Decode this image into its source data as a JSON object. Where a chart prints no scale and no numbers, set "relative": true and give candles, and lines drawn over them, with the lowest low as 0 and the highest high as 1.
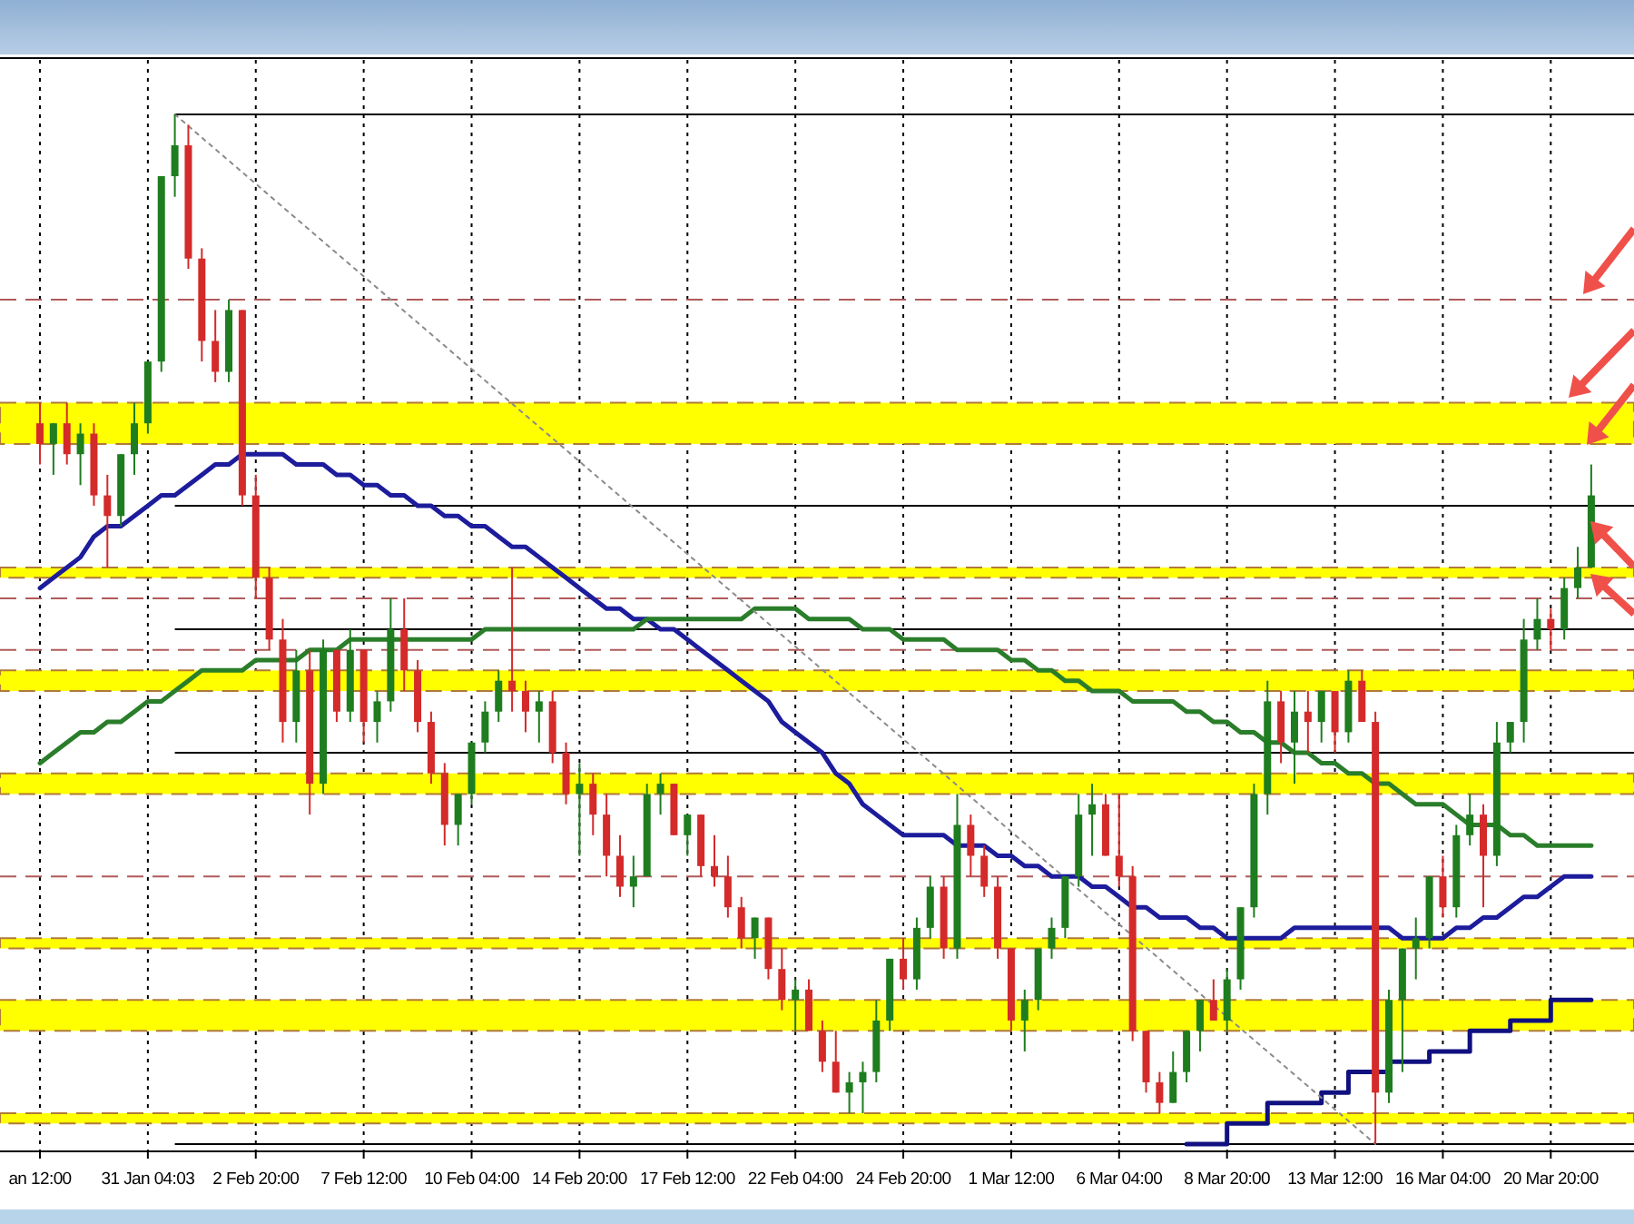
{
  "chart_data": {
    "type": "candlestick",
    "relative": true,
    "tick_labels": "x",
    "grid": "x",
    "categories": [
      "an 12:00",
      null,
      null,
      null,
      null,
      null,
      null,
      null,
      "31 Jan 04:03",
      null,
      null,
      null,
      null,
      null,
      null,
      null,
      "2 Feb 20:00",
      null,
      null,
      null,
      null,
      null,
      null,
      null,
      "7 Feb 12:00",
      null,
      null,
      null,
      null,
      null,
      null,
      null,
      "10 Feb 04:00",
      null,
      null,
      null,
      null,
      null,
      null,
      null,
      "14 Feb 20:00",
      null,
      null,
      null,
      null,
      null,
      null,
      null,
      "17 Feb 12:00",
      null,
      null,
      null,
      null,
      null,
      null,
      null,
      "22 Feb 04:00",
      null,
      null,
      null,
      null,
      null,
      null,
      null,
      "24 Feb 20:00",
      null,
      null,
      null,
      null,
      null,
      null,
      null,
      "1 Mar 12:00",
      null,
      null,
      null,
      null,
      null,
      null,
      null,
      "6 Mar 04:00",
      null,
      null,
      null,
      null,
      null,
      null,
      null,
      "8 Mar 20:00",
      null,
      null,
      null,
      null,
      null,
      null,
      null,
      "13 Mar 12:00",
      null,
      null,
      null,
      null,
      null,
      null,
      null,
      "16 Mar 04:00",
      null,
      null,
      null,
      null,
      null,
      null,
      null,
      "20 Mar 20:00",
      null,
      null,
      null
    ],
    "ohlc": [
      [
        0.7,
        0.72,
        0.66,
        0.68
      ],
      [
        0.68,
        0.7,
        0.65,
        0.7
      ],
      [
        0.7,
        0.72,
        0.66,
        0.67
      ],
      [
        0.67,
        0.7,
        0.64,
        0.69
      ],
      [
        0.69,
        0.7,
        0.62,
        0.63
      ],
      [
        0.63,
        0.65,
        0.56,
        0.61
      ],
      [
        0.61,
        0.67,
        0.6,
        0.67
      ],
      [
        0.67,
        0.72,
        0.65,
        0.7
      ],
      [
        0.7,
        0.76,
        0.69,
        0.76
      ],
      [
        0.76,
        0.94,
        0.75,
        0.94
      ],
      [
        0.94,
        1.0,
        0.92,
        0.97
      ],
      [
        0.97,
        0.99,
        0.85,
        0.86
      ],
      [
        0.86,
        0.87,
        0.76,
        0.78
      ],
      [
        0.78,
        0.81,
        0.74,
        0.75
      ],
      [
        0.75,
        0.82,
        0.74,
        0.81
      ],
      [
        0.81,
        0.81,
        0.62,
        0.63
      ],
      [
        0.63,
        0.65,
        0.53,
        0.55
      ],
      [
        0.55,
        0.56,
        0.48,
        0.49
      ],
      [
        0.49,
        0.51,
        0.39,
        0.41
      ],
      [
        0.41,
        0.48,
        0.39,
        0.46
      ],
      [
        0.46,
        0.48,
        0.32,
        0.35
      ],
      [
        0.35,
        0.49,
        0.34,
        0.48
      ],
      [
        0.48,
        0.48,
        0.41,
        0.42
      ],
      [
        0.42,
        0.5,
        0.41,
        0.48
      ],
      [
        0.48,
        0.48,
        0.39,
        0.41
      ],
      [
        0.41,
        0.44,
        0.39,
        0.43
      ],
      [
        0.43,
        0.53,
        0.42,
        0.5
      ],
      [
        0.5,
        0.53,
        0.44,
        0.46
      ],
      [
        0.46,
        0.47,
        0.4,
        0.41
      ],
      [
        0.41,
        0.42,
        0.35,
        0.36
      ],
      [
        0.36,
        0.37,
        0.29,
        0.31
      ],
      [
        0.31,
        0.34,
        0.29,
        0.34
      ],
      [
        0.34,
        0.39,
        0.33,
        0.39
      ],
      [
        0.39,
        0.43,
        0.38,
        0.42
      ],
      [
        0.42,
        0.46,
        0.41,
        0.45
      ],
      [
        0.45,
        0.56,
        0.42,
        0.44
      ],
      [
        0.44,
        0.45,
        0.4,
        0.42
      ],
      [
        0.42,
        0.44,
        0.39,
        0.43
      ],
      [
        0.43,
        0.44,
        0.37,
        0.38
      ],
      [
        0.38,
        0.39,
        0.33,
        0.34
      ],
      [
        0.34,
        0.37,
        0.28,
        0.35
      ],
      [
        0.35,
        0.36,
        0.3,
        0.32
      ],
      [
        0.32,
        0.34,
        0.26,
        0.28
      ],
      [
        0.28,
        0.3,
        0.24,
        0.25
      ],
      [
        0.25,
        0.28,
        0.23,
        0.26
      ],
      [
        0.26,
        0.35,
        0.26,
        0.34
      ],
      [
        0.34,
        0.36,
        0.32,
        0.35
      ],
      [
        0.35,
        0.35,
        0.3,
        0.3
      ],
      [
        0.3,
        0.32,
        0.28,
        0.32
      ],
      [
        0.32,
        0.32,
        0.26,
        0.27
      ],
      [
        0.27,
        0.3,
        0.25,
        0.26
      ],
      [
        0.26,
        0.28,
        0.22,
        0.23
      ],
      [
        0.23,
        0.24,
        0.19,
        0.2
      ],
      [
        0.2,
        0.22,
        0.18,
        0.22
      ],
      [
        0.22,
        0.22,
        0.16,
        0.17
      ],
      [
        0.17,
        0.19,
        0.13,
        0.14
      ],
      [
        0.14,
        0.16,
        0.11,
        0.15
      ],
      [
        0.15,
        0.16,
        0.11,
        0.11
      ],
      [
        0.11,
        0.12,
        0.07,
        0.08
      ],
      [
        0.08,
        0.11,
        0.05,
        0.05
      ],
      [
        0.05,
        0.07,
        0.03,
        0.06
      ],
      [
        0.06,
        0.08,
        0.03,
        0.07
      ],
      [
        0.07,
        0.14,
        0.06,
        0.12
      ],
      [
        0.12,
        0.18,
        0.11,
        0.18
      ],
      [
        0.18,
        0.2,
        0.15,
        0.16
      ],
      [
        0.16,
        0.22,
        0.15,
        0.21
      ],
      [
        0.21,
        0.26,
        0.2,
        0.25
      ],
      [
        0.25,
        0.26,
        0.18,
        0.19
      ],
      [
        0.19,
        0.34,
        0.18,
        0.31
      ],
      [
        0.31,
        0.32,
        0.26,
        0.28
      ],
      [
        0.28,
        0.29,
        0.24,
        0.25
      ],
      [
        0.25,
        0.26,
        0.18,
        0.19
      ],
      [
        0.19,
        0.19,
        0.11,
        0.12
      ],
      [
        0.12,
        0.15,
        0.09,
        0.14
      ],
      [
        0.14,
        0.19,
        0.13,
        0.19
      ],
      [
        0.19,
        0.22,
        0.18,
        0.21
      ],
      [
        0.21,
        0.26,
        0.2,
        0.26
      ],
      [
        0.26,
        0.34,
        0.25,
        0.32
      ],
      [
        0.32,
        0.35,
        0.28,
        0.33
      ],
      [
        0.33,
        0.34,
        0.28,
        0.28
      ],
      [
        0.28,
        0.34,
        0.25,
        0.26
      ],
      [
        0.26,
        0.27,
        0.1,
        0.11
      ],
      [
        0.11,
        0.11,
        0.05,
        0.06
      ],
      [
        0.06,
        0.07,
        0.03,
        0.04
      ],
      [
        0.04,
        0.09,
        0.04,
        0.07
      ],
      [
        0.07,
        0.11,
        0.06,
        0.11
      ],
      [
        0.11,
        0.14,
        0.09,
        0.14
      ],
      [
        0.14,
        0.16,
        0.12,
        0.12
      ],
      [
        0.12,
        0.17,
        0.11,
        0.16
      ],
      [
        0.16,
        0.23,
        0.15,
        0.23
      ],
      [
        0.23,
        0.35,
        0.22,
        0.34
      ],
      [
        0.34,
        0.45,
        0.32,
        0.43
      ],
      [
        0.43,
        0.44,
        0.37,
        0.39
      ],
      [
        0.39,
        0.44,
        0.35,
        0.42
      ],
      [
        0.42,
        0.44,
        0.38,
        0.41
      ],
      [
        0.41,
        0.44,
        0.39,
        0.44
      ],
      [
        0.44,
        0.44,
        0.38,
        0.4
      ],
      [
        0.4,
        0.46,
        0.39,
        0.45
      ],
      [
        0.45,
        0.46,
        0.41,
        0.41
      ],
      [
        0.41,
        0.42,
        0.0,
        0.05
      ],
      [
        0.05,
        0.15,
        0.04,
        0.14
      ],
      [
        0.14,
        0.19,
        0.07,
        0.19
      ],
      [
        0.19,
        0.22,
        0.16,
        0.2
      ],
      [
        0.2,
        0.26,
        0.19,
        0.26
      ],
      [
        0.26,
        0.28,
        0.22,
        0.23
      ],
      [
        0.23,
        0.31,
        0.22,
        0.3
      ],
      [
        0.3,
        0.34,
        0.29,
        0.32
      ],
      [
        0.32,
        0.33,
        0.23,
        0.28
      ],
      [
        0.28,
        0.41,
        0.27,
        0.39
      ],
      [
        0.39,
        0.41,
        0.38,
        0.41
      ],
      [
        0.41,
        0.51,
        0.39,
        0.49
      ],
      [
        0.49,
        0.53,
        0.48,
        0.51
      ],
      [
        0.51,
        0.52,
        0.48,
        0.5
      ],
      [
        0.5,
        0.55,
        0.49,
        0.54
      ],
      [
        0.54,
        0.58,
        0.53,
        0.56
      ],
      [
        0.56,
        0.66,
        0.56,
        0.63
      ]
    ],
    "series": [
      {
        "type": "line",
        "color": "#1c1c9c",
        "values": [
          0.54,
          0.55,
          0.56,
          0.57,
          0.59,
          0.6,
          0.6,
          0.61,
          0.62,
          0.63,
          0.63,
          0.64,
          0.65,
          0.66,
          0.66,
          0.67,
          0.67,
          0.67,
          0.67,
          0.66,
          0.66,
          0.66,
          0.65,
          0.65,
          0.64,
          0.64,
          0.63,
          0.63,
          0.62,
          0.62,
          0.61,
          0.61,
          0.6,
          0.6,
          0.59,
          0.58,
          0.58,
          0.57,
          0.56,
          0.55,
          0.54,
          0.53,
          0.52,
          0.52,
          0.51,
          0.51,
          0.5,
          0.5,
          0.49,
          0.48,
          0.47,
          0.46,
          0.45,
          0.44,
          0.43,
          0.41,
          0.4,
          0.39,
          0.38,
          0.36,
          0.35,
          0.33,
          0.32,
          0.31,
          0.3,
          0.3,
          0.3,
          0.3,
          0.29,
          0.29,
          0.29,
          0.28,
          0.28,
          0.27,
          0.27,
          0.26,
          0.26,
          0.26,
          0.25,
          0.25,
          0.24,
          0.23,
          0.23,
          0.22,
          0.22,
          0.22,
          0.21,
          0.21,
          0.2,
          0.2,
          0.2,
          0.2,
          0.2,
          0.21,
          0.21,
          0.21,
          0.21,
          0.21,
          0.21,
          0.21,
          0.21,
          0.2,
          0.2,
          0.2,
          0.2,
          0.21,
          0.21,
          0.22,
          0.22,
          0.23,
          0.24,
          0.24,
          0.25,
          0.26,
          0.26,
          0.26
        ]
      },
      {
        "type": "line",
        "color": "#2a7d2a",
        "values": [
          0.37,
          0.38,
          0.39,
          0.4,
          0.4,
          0.41,
          0.41,
          0.42,
          0.43,
          0.43,
          0.44,
          0.45,
          0.46,
          0.46,
          0.46,
          0.46,
          0.47,
          0.47,
          0.47,
          0.47,
          0.48,
          0.48,
          0.48,
          0.49,
          0.49,
          0.49,
          0.49,
          0.49,
          0.49,
          0.49,
          0.49,
          0.49,
          0.49,
          0.5,
          0.5,
          0.5,
          0.5,
          0.5,
          0.5,
          0.5,
          0.5,
          0.5,
          0.5,
          0.5,
          0.5,
          0.51,
          0.51,
          0.51,
          0.51,
          0.51,
          0.51,
          0.51,
          0.51,
          0.52,
          0.52,
          0.52,
          0.52,
          0.51,
          0.51,
          0.51,
          0.51,
          0.5,
          0.5,
          0.5,
          0.49,
          0.49,
          0.49,
          0.49,
          0.48,
          0.48,
          0.48,
          0.48,
          0.47,
          0.47,
          0.46,
          0.46,
          0.45,
          0.45,
          0.44,
          0.44,
          0.44,
          0.43,
          0.43,
          0.43,
          0.43,
          0.42,
          0.42,
          0.41,
          0.41,
          0.4,
          0.4,
          0.39,
          0.39,
          0.38,
          0.38,
          0.37,
          0.37,
          0.36,
          0.36,
          0.35,
          0.35,
          0.34,
          0.33,
          0.33,
          0.33,
          0.32,
          0.31,
          0.31,
          0.31,
          0.3,
          0.3,
          0.29,
          0.29,
          0.29,
          0.29,
          0.29
        ]
      },
      {
        "type": "step",
        "color": "#101080",
        "values": [
          null,
          null,
          null,
          null,
          null,
          null,
          null,
          null,
          null,
          null,
          null,
          null,
          null,
          null,
          null,
          null,
          null,
          null,
          null,
          null,
          null,
          null,
          null,
          null,
          null,
          null,
          null,
          null,
          null,
          null,
          null,
          null,
          null,
          null,
          null,
          null,
          null,
          null,
          null,
          null,
          null,
          null,
          null,
          null,
          null,
          null,
          null,
          null,
          null,
          null,
          null,
          null,
          null,
          null,
          null,
          null,
          null,
          null,
          null,
          null,
          null,
          null,
          null,
          null,
          null,
          null,
          null,
          null,
          null,
          null,
          null,
          null,
          null,
          null,
          null,
          null,
          null,
          null,
          null,
          null,
          null,
          null,
          null,
          null,
          null,
          0.0,
          0.0,
          0.0,
          0.02,
          0.02,
          0.02,
          0.04,
          0.04,
          0.04,
          0.04,
          0.05,
          0.05,
          0.07,
          0.07,
          0.07,
          0.08,
          0.08,
          0.08,
          0.09,
          0.09,
          0.09,
          0.11,
          0.11,
          0.11,
          0.12,
          0.12,
          0.12,
          0.14,
          0.14,
          0.14,
          0.14
        ]
      },
      {
        "type": "line",
        "color": "#8a8a8a",
        "line_style": "dotted",
        "values": [
          null,
          null,
          null,
          null,
          null,
          null,
          null,
          null,
          null,
          null,
          1.0,
          null,
          null,
          null,
          null,
          null,
          null,
          null,
          null,
          null,
          null,
          null,
          null,
          null,
          null,
          null,
          null,
          null,
          null,
          null,
          null,
          null,
          null,
          null,
          null,
          null,
          null,
          null,
          null,
          null,
          null,
          null,
          null,
          null,
          null,
          null,
          null,
          null,
          null,
          null,
          null,
          null,
          null,
          null,
          null,
          null,
          null,
          null,
          null,
          null,
          null,
          null,
          null,
          null,
          null,
          null,
          null,
          null,
          null,
          null,
          null,
          null,
          null,
          null,
          null,
          null,
          null,
          null,
          null,
          null,
          null,
          null,
          null,
          null,
          null,
          null,
          null,
          null,
          null,
          null,
          null,
          null,
          null,
          null,
          null,
          null,
          null,
          null,
          null,
          0.0,
          null,
          null,
          null,
          null,
          null,
          null,
          null,
          null,
          null,
          null,
          null,
          null,
          null,
          null,
          null,
          null
        ]
      }
    ],
    "bands": [
      {
        "axis": "y",
        "from": 0.68,
        "to": 0.72,
        "color": "#ffff00"
      },
      {
        "axis": "y",
        "from": 0.55,
        "to": 0.56,
        "color": "#ffff00"
      },
      {
        "axis": "y",
        "from": 0.44,
        "to": 0.46,
        "color": "#ffff00"
      },
      {
        "axis": "y",
        "from": 0.34,
        "to": 0.36,
        "color": "#ffff00"
      },
      {
        "axis": "y",
        "from": 0.19,
        "to": 0.2,
        "color": "#ffff00"
      },
      {
        "axis": "y",
        "from": 0.11,
        "to": 0.14,
        "color": "#ffff00"
      },
      {
        "axis": "y",
        "from": 0.02,
        "to": 0.03,
        "color": "#ffff00"
      }
    ],
    "ref_lines": [
      {
        "axis": "y",
        "value": 1.0,
        "color": "#000000",
        "line_style": "solid"
      },
      {
        "axis": "y",
        "value": 0.62,
        "color": "#000000",
        "line_style": "solid"
      },
      {
        "axis": "y",
        "value": 0.5,
        "color": "#000000",
        "line_style": "solid"
      },
      {
        "axis": "y",
        "value": 0.38,
        "color": "#000000",
        "line_style": "solid"
      },
      {
        "axis": "y",
        "value": 0.0,
        "color": "#000000",
        "line_style": "solid"
      },
      {
        "axis": "y",
        "value": 0.82,
        "color": "#b05a5a",
        "line_style": "dashed"
      },
      {
        "axis": "y",
        "value": 0.53,
        "color": "#b05a5a",
        "line_style": "dashed"
      },
      {
        "axis": "y",
        "value": 0.48,
        "color": "#b05a5a",
        "line_style": "dashed"
      },
      {
        "axis": "y",
        "value": 0.26,
        "color": "#b05a5a",
        "line_style": "dashed"
      }
    ]
  }
}
